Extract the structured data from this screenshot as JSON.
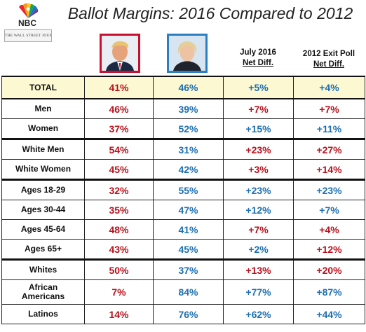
{
  "header": {
    "title": "Ballot Margins: 2016 Compared to 2012",
    "logo_text": "NBC",
    "newspaper_text": "THE WALL STREET JOURNAL."
  },
  "candidates": [
    {
      "name": "Trump",
      "color": "#c8102e"
    },
    {
      "name": "Clinton",
      "color": "#2a7fc1"
    }
  ],
  "chart_data": {
    "type": "table",
    "title": "Ballot Margins: 2016 Compared to 2012",
    "columns": [
      "",
      "Trump",
      "Clinton",
      "July 2016 Net Diff.",
      "2012 Exit Poll Net Diff."
    ],
    "column_headers": {
      "july": [
        "July 2016",
        "Net Diff."
      ],
      "exit": [
        "2012 Exit Poll",
        "Net Diff."
      ]
    },
    "rows": [
      {
        "label": [
          "TOTAL"
        ],
        "trump": "41%",
        "clinton": "46%",
        "july": "+5%",
        "july_color": "blue",
        "exit": "+4%",
        "exit_color": "blue",
        "style": "total"
      },
      {
        "label": [
          "Men"
        ],
        "trump": "46%",
        "clinton": "39%",
        "july": "+7%",
        "july_color": "red",
        "exit": "+7%",
        "exit_color": "red",
        "style": "r"
      },
      {
        "label": [
          "Women"
        ],
        "trump": "37%",
        "clinton": "52%",
        "july": "+15%",
        "july_color": "blue",
        "exit": "+11%",
        "exit_color": "blue",
        "style": "r"
      },
      {
        "label": [
          "White Men"
        ],
        "trump": "54%",
        "clinton": "31%",
        "july": "+23%",
        "july_color": "red",
        "exit": "+27%",
        "exit_color": "red",
        "style": "r grp"
      },
      {
        "label": [
          "White Women"
        ],
        "trump": "45%",
        "clinton": "42%",
        "july": "+3%",
        "july_color": "red",
        "exit": "+14%",
        "exit_color": "red",
        "style": "r"
      },
      {
        "label": [
          "Ages 18-29"
        ],
        "trump": "32%",
        "clinton": "55%",
        "july": "+23%",
        "july_color": "blue",
        "exit": "+23%",
        "exit_color": "blue",
        "style": "r grp"
      },
      {
        "label": [
          "Ages 30-44"
        ],
        "trump": "35%",
        "clinton": "47%",
        "july": "+12%",
        "july_color": "blue",
        "exit": "+7%",
        "exit_color": "blue",
        "style": "r"
      },
      {
        "label": [
          "Ages 45-64"
        ],
        "trump": "48%",
        "clinton": "41%",
        "july": "+7%",
        "july_color": "red",
        "exit": "+4%",
        "exit_color": "red",
        "style": "r"
      },
      {
        "label": [
          "Ages 65+"
        ],
        "trump": "43%",
        "clinton": "45%",
        "july": "+2%",
        "july_color": "blue",
        "exit": "+12%",
        "exit_color": "red",
        "style": "r"
      },
      {
        "label": [
          "Whites"
        ],
        "trump": "50%",
        "clinton": "37%",
        "july": "+13%",
        "july_color": "red",
        "exit": "+20%",
        "exit_color": "red",
        "style": "r grp"
      },
      {
        "label": [
          "African",
          "Americans"
        ],
        "trump": "7%",
        "clinton": "84%",
        "july": "+77%",
        "july_color": "blue",
        "exit": "+87%",
        "exit_color": "blue",
        "style": "tall"
      },
      {
        "label": [
          "Latinos"
        ],
        "trump": "14%",
        "clinton": "76%",
        "july": "+62%",
        "july_color": "blue",
        "exit": "+44%",
        "exit_color": "blue",
        "style": "r"
      }
    ]
  },
  "colors": {
    "red": "#b8111c",
    "blue": "#1c6fb1",
    "total_bg": "#fcf8d2"
  }
}
